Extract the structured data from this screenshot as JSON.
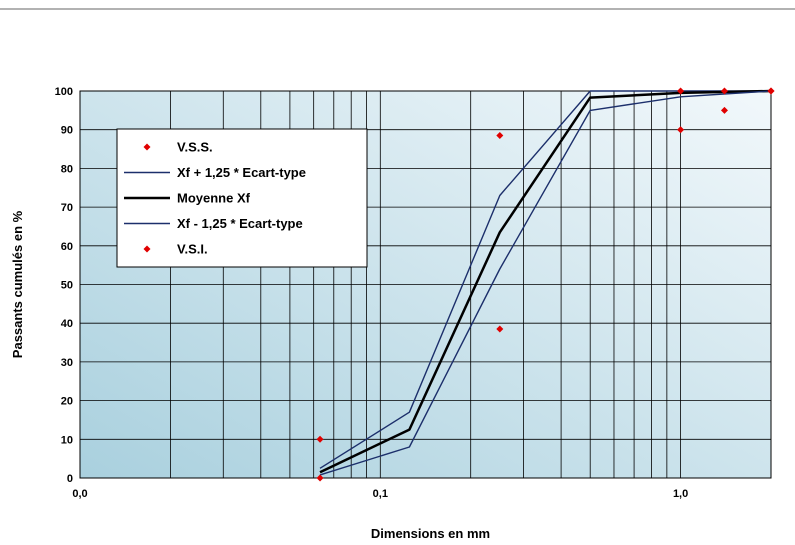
{
  "chart_data": {
    "type": "line",
    "xlabel": "Dimensions en mm",
    "ylabel": "Passants cumulés en %",
    "x_scale": "log",
    "xlim": [
      0.01,
      2
    ],
    "ylim": [
      0,
      100
    ],
    "x_ticks": [
      {
        "value": 0.01,
        "label": "0,0"
      },
      {
        "value": 0.1,
        "label": "0,1"
      },
      {
        "value": 1,
        "label": "1,0"
      }
    ],
    "y_ticks": [
      0,
      10,
      20,
      30,
      40,
      50,
      60,
      70,
      80,
      90,
      100
    ],
    "grid": true,
    "legend_position": "top-left",
    "colors": {
      "upper": "#1c2f6b",
      "mean": "#000000",
      "lower": "#1c2f6b",
      "marker": "#e00000",
      "plot_bg_light": "#f2f8fb",
      "plot_bg_dark": "#a9d0de"
    },
    "series": [
      {
        "name": "V.S.S.",
        "kind": "marker",
        "x": [
          0.063,
          0.25,
          1.0,
          1.4,
          2.0
        ],
        "y": [
          10,
          88.5,
          100,
          100,
          100
        ]
      },
      {
        "name": "Xf + 1,25 * Ecart-type",
        "kind": "line",
        "x": [
          0.063,
          0.125,
          0.25,
          0.5,
          1.0,
          2.0
        ],
        "y": [
          2.5,
          17,
          73,
          100,
          100,
          100
        ]
      },
      {
        "name": "Moyenne Xf",
        "kind": "line",
        "x": [
          0.063,
          0.125,
          0.25,
          0.5,
          1.0,
          2.0
        ],
        "y": [
          1.5,
          12.5,
          63.5,
          98.3,
          99.5,
          100
        ]
      },
      {
        "name": "Xf - 1,25 * Ecart-type",
        "kind": "line",
        "x": [
          0.063,
          0.125,
          0.25,
          0.5,
          1.0,
          2.0
        ],
        "y": [
          0.8,
          8,
          54,
          95,
          98.5,
          100
        ]
      },
      {
        "name": "V.S.I.",
        "kind": "marker",
        "x": [
          0.063,
          0.25,
          1.0,
          1.4,
          2.0
        ],
        "y": [
          0,
          38.5,
          90,
          95,
          100
        ]
      }
    ]
  }
}
